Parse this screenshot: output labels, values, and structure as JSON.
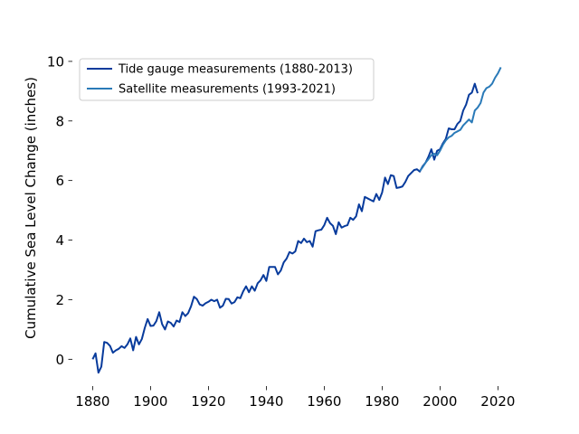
{
  "chart_data": {
    "type": "line",
    "title": "",
    "xlabel": "",
    "ylabel": "Cumulative Sea Level Change (inches)",
    "xlim": [
      1873,
      2028
    ],
    "ylim": [
      -0.9,
      10.3
    ],
    "xticks": [
      1880,
      1900,
      1920,
      1940,
      1960,
      1980,
      2000,
      2020
    ],
    "yticks": [
      0,
      2,
      4,
      6,
      8,
      10
    ],
    "grid": false,
    "legend_position": "top-left",
    "series": [
      {
        "name": "Tide gauge measurements (1880-2013)",
        "color": "#083b9c",
        "points": [
          [
            1880,
            0.0
          ],
          [
            1881,
            0.2
          ],
          [
            1882,
            -0.45
          ],
          [
            1883,
            -0.25
          ],
          [
            1884,
            0.58
          ],
          [
            1885,
            0.55
          ],
          [
            1886,
            0.45
          ],
          [
            1887,
            0.22
          ],
          [
            1888,
            0.3
          ],
          [
            1889,
            0.35
          ],
          [
            1890,
            0.44
          ],
          [
            1891,
            0.38
          ],
          [
            1892,
            0.5
          ],
          [
            1893,
            0.7
          ],
          [
            1894,
            0.3
          ],
          [
            1895,
            0.75
          ],
          [
            1896,
            0.5
          ],
          [
            1897,
            0.68
          ],
          [
            1898,
            1.05
          ],
          [
            1899,
            1.35
          ],
          [
            1900,
            1.12
          ],
          [
            1901,
            1.13
          ],
          [
            1902,
            1.28
          ],
          [
            1903,
            1.58
          ],
          [
            1904,
            1.18
          ],
          [
            1905,
            1.0
          ],
          [
            1906,
            1.27
          ],
          [
            1907,
            1.22
          ],
          [
            1908,
            1.1
          ],
          [
            1909,
            1.3
          ],
          [
            1910,
            1.25
          ],
          [
            1911,
            1.58
          ],
          [
            1912,
            1.45
          ],
          [
            1913,
            1.55
          ],
          [
            1914,
            1.78
          ],
          [
            1915,
            2.1
          ],
          [
            1916,
            2.02
          ],
          [
            1917,
            1.84
          ],
          [
            1918,
            1.8
          ],
          [
            1919,
            1.88
          ],
          [
            1920,
            1.93
          ],
          [
            1921,
            2.0
          ],
          [
            1922,
            1.95
          ],
          [
            1923,
            2.0
          ],
          [
            1924,
            1.73
          ],
          [
            1925,
            1.8
          ],
          [
            1926,
            2.03
          ],
          [
            1927,
            2.02
          ],
          [
            1928,
            1.87
          ],
          [
            1929,
            1.92
          ],
          [
            1930,
            2.08
          ],
          [
            1931,
            2.05
          ],
          [
            1932,
            2.28
          ],
          [
            1933,
            2.45
          ],
          [
            1934,
            2.25
          ],
          [
            1935,
            2.45
          ],
          [
            1936,
            2.3
          ],
          [
            1937,
            2.55
          ],
          [
            1938,
            2.65
          ],
          [
            1939,
            2.83
          ],
          [
            1940,
            2.63
          ],
          [
            1941,
            3.1
          ],
          [
            1942,
            3.1
          ],
          [
            1943,
            3.1
          ],
          [
            1944,
            2.85
          ],
          [
            1945,
            2.98
          ],
          [
            1946,
            3.25
          ],
          [
            1947,
            3.38
          ],
          [
            1948,
            3.6
          ],
          [
            1949,
            3.55
          ],
          [
            1950,
            3.62
          ],
          [
            1951,
            3.97
          ],
          [
            1952,
            3.9
          ],
          [
            1953,
            4.05
          ],
          [
            1954,
            3.93
          ],
          [
            1955,
            3.97
          ],
          [
            1956,
            3.78
          ],
          [
            1957,
            4.3
          ],
          [
            1958,
            4.33
          ],
          [
            1959,
            4.35
          ],
          [
            1960,
            4.5
          ],
          [
            1961,
            4.75
          ],
          [
            1962,
            4.57
          ],
          [
            1963,
            4.48
          ],
          [
            1964,
            4.2
          ],
          [
            1965,
            4.6
          ],
          [
            1966,
            4.42
          ],
          [
            1967,
            4.47
          ],
          [
            1968,
            4.5
          ],
          [
            1969,
            4.75
          ],
          [
            1970,
            4.68
          ],
          [
            1971,
            4.8
          ],
          [
            1972,
            5.2
          ],
          [
            1973,
            4.97
          ],
          [
            1974,
            5.45
          ],
          [
            1975,
            5.4
          ],
          [
            1976,
            5.35
          ],
          [
            1977,
            5.3
          ],
          [
            1978,
            5.55
          ],
          [
            1979,
            5.35
          ],
          [
            1980,
            5.6
          ],
          [
            1981,
            6.1
          ],
          [
            1982,
            5.88
          ],
          [
            1983,
            6.18
          ],
          [
            1984,
            6.15
          ],
          [
            1985,
            5.75
          ],
          [
            1986,
            5.77
          ],
          [
            1987,
            5.8
          ],
          [
            1988,
            5.95
          ],
          [
            1989,
            6.15
          ],
          [
            1990,
            6.25
          ],
          [
            1991,
            6.35
          ],
          [
            1992,
            6.38
          ],
          [
            1993,
            6.3
          ],
          [
            1994,
            6.48
          ],
          [
            1995,
            6.6
          ],
          [
            1996,
            6.8
          ],
          [
            1997,
            7.05
          ],
          [
            1998,
            6.7
          ],
          [
            1999,
            7.0
          ],
          [
            2000,
            7.05
          ],
          [
            2001,
            7.25
          ],
          [
            2002,
            7.4
          ],
          [
            2003,
            7.75
          ],
          [
            2004,
            7.72
          ],
          [
            2005,
            7.72
          ],
          [
            2006,
            7.9
          ],
          [
            2007,
            8.0
          ],
          [
            2008,
            8.35
          ],
          [
            2009,
            8.55
          ],
          [
            2010,
            8.88
          ],
          [
            2011,
            8.95
          ],
          [
            2012,
            9.25
          ],
          [
            2013,
            8.93
          ]
        ]
      },
      {
        "name": "Satellite measurements (1993-2021)",
        "color": "#2a7ab8",
        "points": [
          [
            1993,
            6.32
          ],
          [
            1994,
            6.45
          ],
          [
            1995,
            6.6
          ],
          [
            1996,
            6.72
          ],
          [
            1997,
            6.85
          ],
          [
            1998,
            6.9
          ],
          [
            1999,
            6.85
          ],
          [
            2000,
            7.0
          ],
          [
            2001,
            7.2
          ],
          [
            2002,
            7.35
          ],
          [
            2003,
            7.45
          ],
          [
            2004,
            7.5
          ],
          [
            2005,
            7.6
          ],
          [
            2006,
            7.65
          ],
          [
            2007,
            7.7
          ],
          [
            2008,
            7.85
          ],
          [
            2009,
            7.95
          ],
          [
            2010,
            8.05
          ],
          [
            2011,
            7.95
          ],
          [
            2012,
            8.35
          ],
          [
            2013,
            8.45
          ],
          [
            2014,
            8.6
          ],
          [
            2015,
            8.95
          ],
          [
            2016,
            9.1
          ],
          [
            2017,
            9.15
          ],
          [
            2018,
            9.25
          ],
          [
            2019,
            9.45
          ],
          [
            2020,
            9.6
          ],
          [
            2021,
            9.8
          ]
        ]
      }
    ]
  }
}
